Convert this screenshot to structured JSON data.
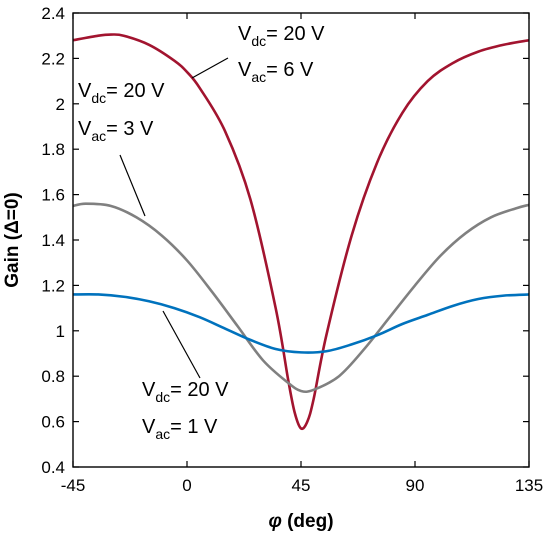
{
  "chart_data": {
    "type": "line",
    "xlabel_symbol": "φ",
    "xlabel_unit": " (deg)",
    "ylabel": "Gain (Δ=0)",
    "xlim": [
      -45,
      135
    ],
    "ylim": [
      0.4,
      2.4
    ],
    "xticks": [
      -45,
      0,
      45,
      90,
      135
    ],
    "xtick_labels": [
      "-45",
      "0",
      "45",
      "90",
      "135"
    ],
    "yticks": [
      0.4,
      0.6,
      0.8,
      1.0,
      1.2,
      1.4,
      1.6,
      1.8,
      2.0,
      2.2,
      2.4
    ],
    "ytick_labels": [
      "0.4",
      "0.6",
      "0.8",
      "1",
      "1.2",
      "1.4",
      "1.6",
      "1.8",
      "2",
      "2.2",
      "2.4"
    ],
    "grid": false,
    "series": [
      {
        "vdc_label": "V",
        "vdc_sub": "dc",
        "vdc_value": "= 20 V",
        "vac_label": "V",
        "vac_sub": "ac",
        "vac_value": "= 6 V",
        "color": "#a2142f",
        "x": [
          -45,
          -35,
          -30,
          -25,
          -15,
          -5,
          0,
          5,
          15,
          25,
          35,
          40,
          42.5,
          45,
          47.5,
          50,
          55,
          65,
          75,
          85,
          95,
          105,
          115,
          125,
          135
        ],
        "y": [
          2.28,
          2.3,
          2.305,
          2.3,
          2.26,
          2.19,
          2.14,
          2.07,
          1.88,
          1.58,
          1.1,
          0.78,
          0.64,
          0.57,
          0.6,
          0.7,
          0.98,
          1.42,
          1.74,
          1.96,
          2.1,
          2.18,
          2.23,
          2.26,
          2.28
        ]
      },
      {
        "vdc_label": "V",
        "vdc_sub": "dc",
        "vdc_value": "= 20 V",
        "vac_label": "V",
        "vac_sub": "ac",
        "vac_value": "= 3 V",
        "color": "#808080",
        "x": [
          -45,
          -40,
          -30,
          -20,
          -10,
          0,
          10,
          20,
          30,
          40,
          45,
          50,
          60,
          70,
          80,
          90,
          100,
          110,
          120,
          130,
          135
        ],
        "y": [
          1.55,
          1.56,
          1.55,
          1.5,
          1.42,
          1.31,
          1.17,
          1.02,
          0.87,
          0.77,
          0.735,
          0.74,
          0.8,
          0.92,
          1.06,
          1.2,
          1.33,
          1.43,
          1.5,
          1.54,
          1.555
        ]
      },
      {
        "vdc_label": "V",
        "vdc_sub": "dc",
        "vdc_value": "= 20 V",
        "vac_label": "V",
        "vac_sub": "ac",
        "vac_value": "= 1 V",
        "color": "#0072bd",
        "x": [
          -45,
          -35,
          -25,
          -15,
          -5,
          5,
          15,
          25,
          35,
          45,
          55,
          65,
          75,
          85,
          95,
          105,
          115,
          125,
          135
        ],
        "y": [
          1.16,
          1.16,
          1.15,
          1.13,
          1.1,
          1.06,
          1.01,
          0.96,
          0.92,
          0.905,
          0.91,
          0.94,
          0.98,
          1.03,
          1.07,
          1.11,
          1.14,
          1.155,
          1.16
        ]
      }
    ]
  }
}
